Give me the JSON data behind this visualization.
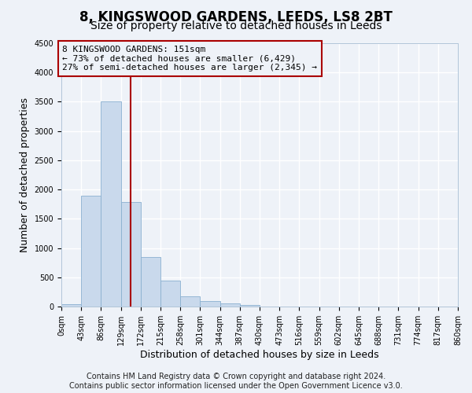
{
  "title": "8, KINGSWOOD GARDENS, LEEDS, LS8 2BT",
  "subtitle": "Size of property relative to detached houses in Leeds",
  "xlabel": "Distribution of detached houses by size in Leeds",
  "ylabel": "Number of detached properties",
  "bar_color": "#c9d9ec",
  "bar_edge_color": "#8ab0d0",
  "background_color": "#eef2f8",
  "grid_color": "#ffffff",
  "annotation_line_color": "#aa0000",
  "annotation_box_color": "#aa0000",
  "annotation_text": "8 KINGSWOOD GARDENS: 151sqm\n← 73% of detached houses are smaller (6,429)\n27% of semi-detached houses are larger (2,345) →",
  "property_size": 151,
  "bin_edges": [
    0,
    43,
    86,
    129,
    172,
    215,
    258,
    301,
    344,
    387,
    430,
    473,
    516,
    559,
    602,
    645,
    688,
    731,
    774,
    817,
    860
  ],
  "bin_labels": [
    "0sqm",
    "43sqm",
    "86sqm",
    "129sqm",
    "172sqm",
    "215sqm",
    "258sqm",
    "301sqm",
    "344sqm",
    "387sqm",
    "430sqm",
    "473sqm",
    "516sqm",
    "559sqm",
    "602sqm",
    "645sqm",
    "688sqm",
    "731sqm",
    "774sqm",
    "817sqm",
    "860sqm"
  ],
  "bar_heights": [
    40,
    1900,
    3500,
    1780,
    850,
    450,
    170,
    90,
    50,
    30,
    0,
    0,
    0,
    0,
    0,
    0,
    0,
    0,
    0,
    0
  ],
  "ylim": [
    0,
    4500
  ],
  "yticks": [
    0,
    500,
    1000,
    1500,
    2000,
    2500,
    3000,
    3500,
    4000,
    4500
  ],
  "footer_text": "Contains HM Land Registry data © Crown copyright and database right 2024.\nContains public sector information licensed under the Open Government Licence v3.0.",
  "title_fontsize": 12,
  "subtitle_fontsize": 10,
  "label_fontsize": 9,
  "tick_fontsize": 7,
  "footer_fontsize": 7,
  "annot_fontsize": 8
}
